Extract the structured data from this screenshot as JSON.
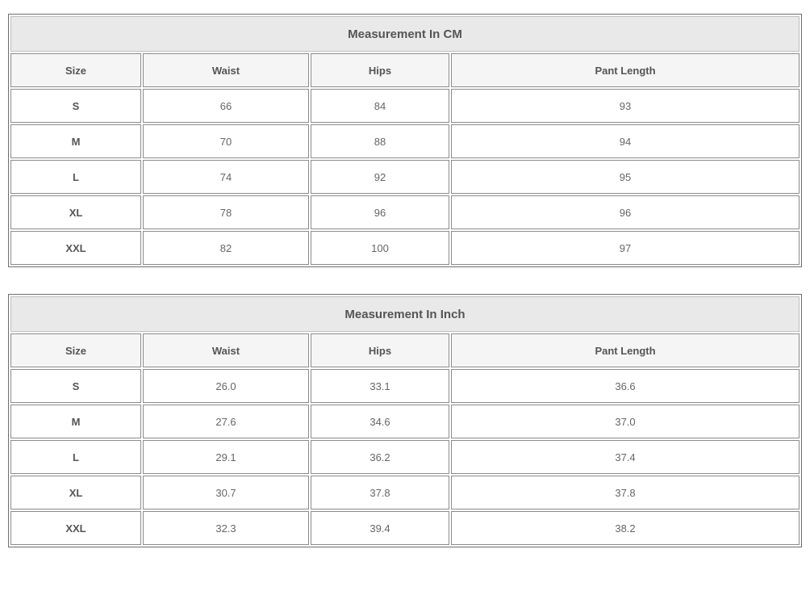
{
  "colors": {
    "title_bg": "#e9e9e9",
    "header_bg": "#f5f5f5",
    "cell_border": "#8c8c8c",
    "outer_border": "#6e6e6e",
    "heading_text": "#555555",
    "value_text": "#666666",
    "page_bg": "#ffffff"
  },
  "tables": [
    {
      "title": "Measurement In CM",
      "columns": [
        "Size",
        "Waist",
        "Hips",
        "Pant Length"
      ],
      "rows": [
        {
          "size": "S",
          "values": [
            "66",
            "84",
            "93"
          ]
        },
        {
          "size": "M",
          "values": [
            "70",
            "88",
            "94"
          ]
        },
        {
          "size": "L",
          "values": [
            "74",
            "92",
            "95"
          ]
        },
        {
          "size": "XL",
          "values": [
            "78",
            "96",
            "96"
          ]
        },
        {
          "size": "XXL",
          "values": [
            "82",
            "100",
            "97"
          ]
        }
      ]
    },
    {
      "title": "Measurement In Inch",
      "columns": [
        "Size",
        "Waist",
        "Hips",
        "Pant Length"
      ],
      "rows": [
        {
          "size": "S",
          "values": [
            "26.0",
            "33.1",
            "36.6"
          ]
        },
        {
          "size": "M",
          "values": [
            "27.6",
            "34.6",
            "37.0"
          ]
        },
        {
          "size": "L",
          "values": [
            "29.1",
            "36.2",
            "37.4"
          ]
        },
        {
          "size": "XL",
          "values": [
            "30.7",
            "37.8",
            "37.8"
          ]
        },
        {
          "size": "XXL",
          "values": [
            "32.3",
            "39.4",
            "38.2"
          ]
        }
      ]
    }
  ]
}
